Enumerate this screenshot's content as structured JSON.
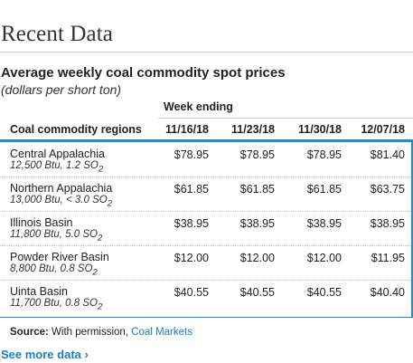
{
  "section": {
    "title": "Recent Data"
  },
  "table": {
    "title": "Average weekly coal commodity spot prices",
    "subtitle": "(dollars per short ton)",
    "week_ending_label": "Week ending",
    "region_column_label": "Coal commodity regions",
    "columns": [
      "11/16/18",
      "11/23/18",
      "11/30/18",
      "12/07/18"
    ],
    "rows": [
      {
        "name": "Central Appalachia",
        "spec_main": "12,500 Btu, 1.2 SO",
        "spec_sub": "2",
        "values": [
          "$78.95",
          "$78.95",
          "$78.95",
          "$81.40"
        ]
      },
      {
        "name": "Northern Appalachia",
        "spec_main": "13,000 Btu, < 3.0 SO",
        "spec_sub": "2",
        "values": [
          "$61.85",
          "$61.85",
          "$61.85",
          "$63.75"
        ]
      },
      {
        "name": "Illinois Basin",
        "spec_main": "11,800 Btu, 5.0 SO",
        "spec_sub": "2",
        "values": [
          "$38.95",
          "$38.95",
          "$38.95",
          "$38.95"
        ]
      },
      {
        "name": "Powder River Basin",
        "spec_main": "8,800 Btu, 0.8 SO",
        "spec_sub": "2",
        "values": [
          "$12.00",
          "$12.00",
          "$12.00",
          "$11.95"
        ]
      },
      {
        "name": "Uinta Basin",
        "spec_main": "11,700 Btu, 0.8 SO",
        "spec_sub": "2",
        "values": [
          "$40.55",
          "$40.55",
          "$40.55",
          "$40.40"
        ]
      }
    ]
  },
  "source": {
    "label": "Source:",
    "text": "With permission,",
    "link_text": "Coal Markets"
  },
  "see_more": {
    "label": "See more data ›"
  },
  "colors": {
    "accent": "#1d8fce",
    "link": "#1a7fc0"
  }
}
